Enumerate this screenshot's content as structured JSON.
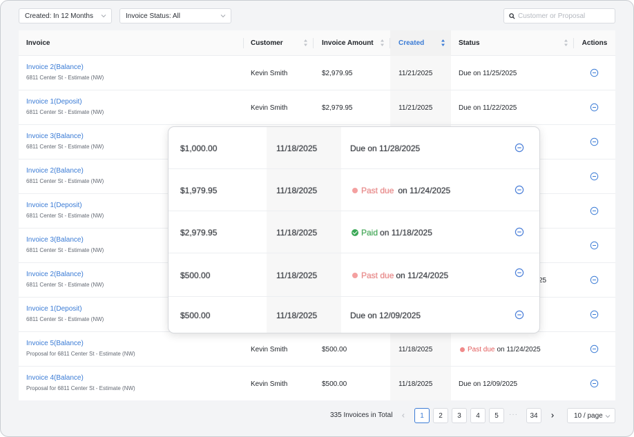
{
  "filters": {
    "created": "Created: In 12 Months",
    "status": "Invoice Status: All",
    "search_placeholder": "Customer or Proposal"
  },
  "table": {
    "headers": {
      "invoice": "Invoice",
      "customer": "Customer",
      "amount": "Invoice Amount",
      "created": "Created",
      "status": "Status",
      "actions": "Actions"
    },
    "rows": [
      {
        "invoice": "Invoice 2(Balance)",
        "sub": "6811 Center St - Estimate (NW)",
        "customer": "Kevin Smith",
        "amount": "$2,979.95",
        "created": "11/21/2025",
        "status": "Due on 11/25/2025"
      },
      {
        "invoice": "Invoice 1(Deposit)",
        "sub": "6811 Center St - Estimate (NW)",
        "customer": "Kevin Smith",
        "amount": "$2,979.95",
        "created": "11/21/2025",
        "status": "Due on 11/22/2025"
      },
      {
        "invoice": "Invoice 3(Balance)",
        "sub": "6811 Center St - Estimate (NW)",
        "customer": "",
        "amount": "",
        "created": "",
        "status": ""
      },
      {
        "invoice": "Invoice 2(Balance)",
        "sub": "6811 Center St - Estimate (NW)",
        "customer": "",
        "amount": "",
        "created": "",
        "status": ""
      },
      {
        "invoice": "Invoice 1(Deposit)",
        "sub": "6811 Center St - Estimate (NW)",
        "customer": "",
        "amount": "",
        "created": "",
        "status": ""
      },
      {
        "invoice": "Invoice 3(Balance)",
        "sub": "6811 Center St - Estimate (NW)",
        "customer": "",
        "amount": "",
        "created": "",
        "status": ""
      },
      {
        "invoice": "Invoice 2(Balance)",
        "sub": "6811 Center St - Estimate (NW)",
        "customer": "",
        "amount": "",
        "created": "",
        "status": "25"
      },
      {
        "invoice": "Invoice 1(Deposit)",
        "sub": "6811 Center St - Estimate (NW)",
        "customer": "",
        "amount": "",
        "created": "",
        "status": ""
      },
      {
        "invoice": "Invoice 5(Balance)",
        "sub": "Proposal for 6811 Center St - Estimate (NW)",
        "customer": "Kevin Smith",
        "amount": "$500.00",
        "created": "11/18/2025",
        "status_badge": "Past due",
        "status": "on 11/24/2025"
      },
      {
        "invoice": "Invoice 4(Balance)",
        "sub": "Proposal for 6811 Center St - Estimate (NW)",
        "customer": "Kevin Smith",
        "amount": "$500.00",
        "created": "11/18/2025",
        "status": "Due on 12/09/2025"
      }
    ]
  },
  "overlay": {
    "rows": [
      {
        "amount": "$1,000.00",
        "created": "11/18/2025",
        "status": "Due on 11/28/2025"
      },
      {
        "amount": "$1,979.95",
        "created": "11/18/2025",
        "status_badge": "Past due",
        "status": "on 11/24/2025"
      },
      {
        "amount": "$2,979.95",
        "created": "11/18/2025",
        "status_badge": "Paid",
        "status": "on 11/18/2025"
      },
      {
        "amount": "$500.00",
        "created": "11/18/2025",
        "status_badge": "Past due",
        "status": "on 11/24/2025"
      },
      {
        "amount": "$500.00",
        "created": "11/18/2025",
        "status": "Due on 12/09/2025"
      }
    ]
  },
  "pagination": {
    "total": "335 Invoices in Total",
    "pages": [
      "1",
      "2",
      "3",
      "4",
      "5"
    ],
    "ellipsis": "···",
    "last": "34",
    "page_size": "10 / page"
  },
  "colors": {
    "accent": "#3a7bd5",
    "past_due": "#e25c5c",
    "paid": "#3aa856"
  }
}
